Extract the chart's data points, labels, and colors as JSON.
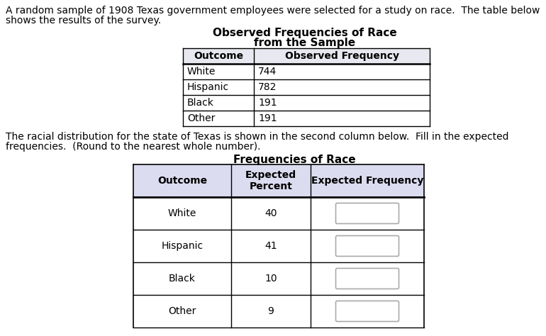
{
  "intro_text_line1": "A random sample of 1908 Texas government employees were selected for a study on race.  The table below",
  "intro_text_line2": "shows the results of the survey.",
  "table1_title_line1": "Observed Frequencies of Race",
  "table1_title_line2": "from the Sample",
  "table1_headers": [
    "Outcome",
    "Observed Frequency"
  ],
  "table1_rows": [
    [
      "White",
      "744"
    ],
    [
      "Hispanic",
      "782"
    ],
    [
      "Black",
      "191"
    ],
    [
      "Other",
      "191"
    ]
  ],
  "middle_text_line1": "The racial distribution for the state of Texas is shown in the second column below.  Fill in the expected",
  "middle_text_line2": "frequencies.  (Round to the nearest whole number).",
  "table2_title": "Frequencies of Race",
  "table2_headers": [
    "Outcome",
    "Expected\nPercent",
    "Expected Frequency"
  ],
  "table2_rows": [
    [
      "White",
      "40"
    ],
    [
      "Hispanic",
      "41"
    ],
    [
      "Black",
      "10"
    ],
    [
      "Other",
      "9"
    ]
  ],
  "bg_color": "#ffffff",
  "table1_header_bg": "#e8e8f0",
  "table2_header_bg": "#dcdcf0",
  "font_size_text": 10.0,
  "font_size_table": 10.0,
  "font_size_title": 11.0,
  "font_family": "DejaVu Sans"
}
